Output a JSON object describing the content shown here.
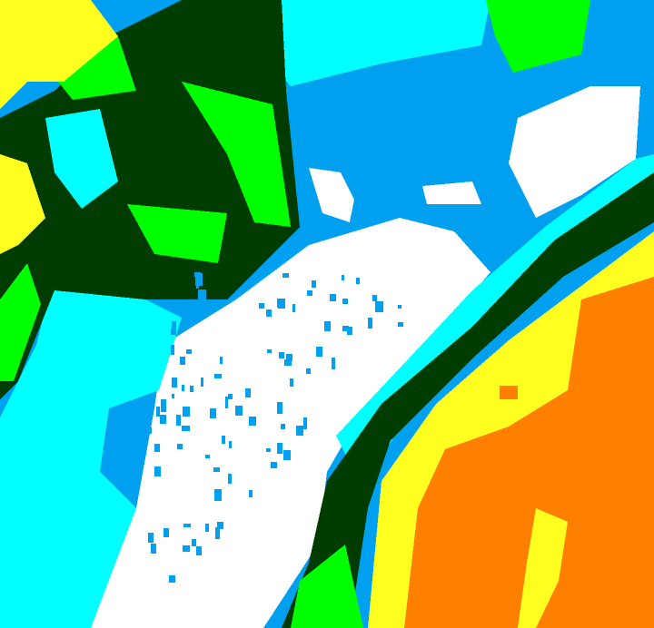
{
  "map": {
    "classes": [
      {
        "id": "yellow",
        "color": "#ffff20"
      },
      {
        "id": "orange",
        "color": "#ff8000"
      },
      {
        "id": "green",
        "color": "#00ff00"
      },
      {
        "id": "dark-green",
        "color": "#003c00"
      },
      {
        "id": "cyan",
        "color": "#00ffff"
      },
      {
        "id": "blue",
        "color": "#00a0f0"
      },
      {
        "id": "white",
        "color": "#ffffff"
      }
    ]
  }
}
